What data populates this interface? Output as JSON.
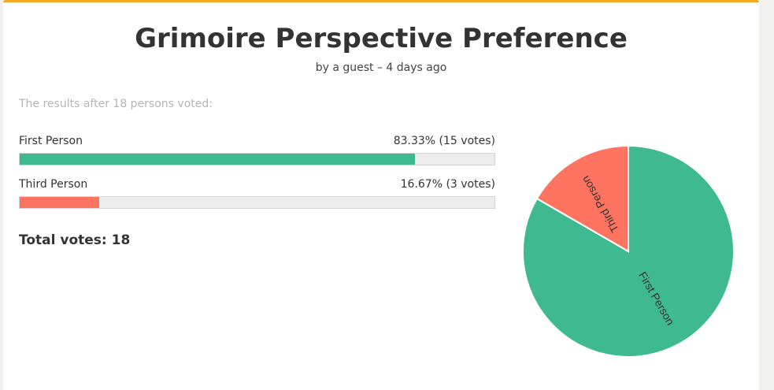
{
  "poll": {
    "title": "Grimoire Perspective Preference",
    "meta": "by a guest – 4 days ago",
    "intro": "The results after 18 persons voted:",
    "total_label": "Total votes: 18",
    "options": [
      {
        "label": "First Person",
        "value_text": "83.33% (15 votes)",
        "percent": 83.33,
        "votes": 15,
        "color": "#3fb990"
      },
      {
        "label": "Third Person",
        "value_text": "16.67% (3 votes)",
        "percent": 16.67,
        "votes": 3,
        "color": "#ff7361"
      }
    ]
  },
  "colors": {
    "accent": "#f5a623",
    "first_person": "#3fb990",
    "third_person": "#ff7361"
  }
}
